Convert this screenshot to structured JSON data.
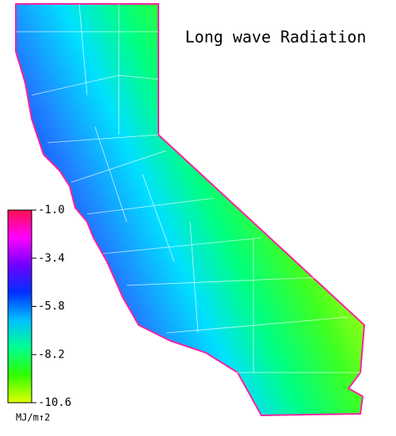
{
  "title": "Long wave Radiation",
  "colorbar": {
    "range": [
      -10.6,
      -1.0
    ],
    "ticks": [
      {
        "value": -1.0,
        "label": "-1.0"
      },
      {
        "value": -3.4,
        "label": "-3.4"
      },
      {
        "value": -5.8,
        "label": "-5.8"
      },
      {
        "value": -8.2,
        "label": "-8.2"
      },
      {
        "value": -10.6,
        "label": "-10.6"
      }
    ],
    "colors": [
      "#ff1050",
      "#ff00ff",
      "#7000ff",
      "#0030ff",
      "#00c0ff",
      "#00ff90",
      "#30ff00",
      "#e0ff00"
    ],
    "unit": "MJ/m↑2"
  }
}
